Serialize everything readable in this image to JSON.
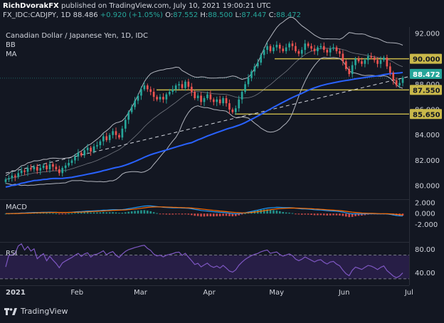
{
  "header": {
    "author": "RichDvorakFX",
    "published_text": "published on TradingView.com, July 10, 2021 19:00:21 UTC",
    "symbol": "FX_IDC:CADJPY, 1D",
    "last": "88.486",
    "change": "+0.920 (+1.05%)",
    "o_label": "O:",
    "o_val": "87.552",
    "h_label": "H:",
    "h_val": "88.500",
    "l_label": "L:",
    "l_val": "87.447",
    "c_label": "C:",
    "c_val": "88.472"
  },
  "legend": {
    "title": "Canadian Dollar / Japanese Yen, 1D, IDC",
    "bb": "BB",
    "ma": "MA"
  },
  "macd_label": "MACD",
  "rsi_label": "RSI",
  "footer": {
    "brand": "TradingView"
  },
  "colors": {
    "background": "#131722",
    "up": "#26a69a",
    "down": "#ef5350",
    "ma": "#2962ff",
    "bb": "#b2b5be",
    "level": "#c9b84a",
    "macd": "#2196f3",
    "signal": "#ff6d00",
    "rsi": "#7e57c2",
    "rsi_band": "#2a1f4a"
  },
  "chart_data": [
    {
      "type": "candlestick",
      "title": "Canadian Dollar / Japanese Yen, 1D, IDC",
      "ylim": [
        79,
        92.5
      ],
      "y_ticks": [
        "92.000",
        "90.000",
        "88.000",
        "86.000",
        "84.000",
        "82.000",
        "80.000"
      ],
      "x_ticks": [
        "2021",
        "Feb",
        "Mar",
        "Apr",
        "May",
        "Jun",
        "Jul"
      ],
      "price_labels": [
        {
          "text": "90.000",
          "value": 90.0,
          "kind": "level"
        },
        {
          "text": "88.472",
          "value": 88.472,
          "kind": "last"
        },
        {
          "text": "87.550",
          "value": 87.55,
          "kind": "level"
        },
        {
          "text": "85.650",
          "value": 85.65,
          "kind": "level"
        }
      ],
      "horizontal_levels": [
        90.0,
        87.55,
        85.65
      ],
      "trendline": {
        "from": [
          0,
          81.0
        ],
        "to": [
          133,
          88.9
        ]
      },
      "closes": [
        80.5,
        80.6,
        80.8,
        80.7,
        81.0,
        81.2,
        81.1,
        81.4,
        81.3,
        81.5,
        81.2,
        81.4,
        81.6,
        81.3,
        81.7,
        81.5,
        81.3,
        81.0,
        81.4,
        81.6,
        81.8,
        82.0,
        82.3,
        82.6,
        82.4,
        82.8,
        83.0,
        82.7,
        83.1,
        83.2,
        83.5,
        83.9,
        83.6,
        84.0,
        84.3,
        84.0,
        83.8,
        84.5,
        85.2,
        85.8,
        86.2,
        86.7,
        87.1,
        87.6,
        87.9,
        87.6,
        87.4,
        87.0,
        86.8,
        87.0,
        86.8,
        87.2,
        87.4,
        87.6,
        87.9,
        88.0,
        87.7,
        88.2,
        87.8,
        87.4,
        86.9,
        87.1,
        86.6,
        86.9,
        87.2,
        86.8,
        86.6,
        86.8,
        86.5,
        86.9,
        86.5,
        86.0,
        85.8,
        86.1,
        86.8,
        87.4,
        88.0,
        88.5,
        89.0,
        89.4,
        89.7,
        90.3,
        90.7,
        91.0,
        90.6,
        90.9,
        91.1,
        90.8,
        90.6,
        90.9,
        91.2,
        91.0,
        90.6,
        90.4,
        90.7,
        91.2,
        91.0,
        90.8,
        90.6,
        90.9,
        91.0,
        90.7,
        90.5,
        90.8,
        90.9,
        90.6,
        90.4,
        89.8,
        89.2,
        88.8,
        89.5,
        90.0,
        89.8,
        89.6,
        89.9,
        90.2,
        90.1,
        89.9,
        89.6,
        89.9,
        90.1,
        89.4,
        88.9,
        88.3,
        87.9,
        88.1,
        88.5
      ]
    },
    {
      "type": "line",
      "name": "MACD",
      "ylim": [
        -2.6,
        2.4
      ],
      "y_ticks": [
        "2.000",
        "0.000",
        "-2.000"
      ]
    },
    {
      "type": "line",
      "name": "RSI",
      "ylim": [
        25,
        90
      ],
      "y_ticks": [
        "80.00",
        "40.00"
      ],
      "bands": [
        30,
        70
      ]
    }
  ]
}
